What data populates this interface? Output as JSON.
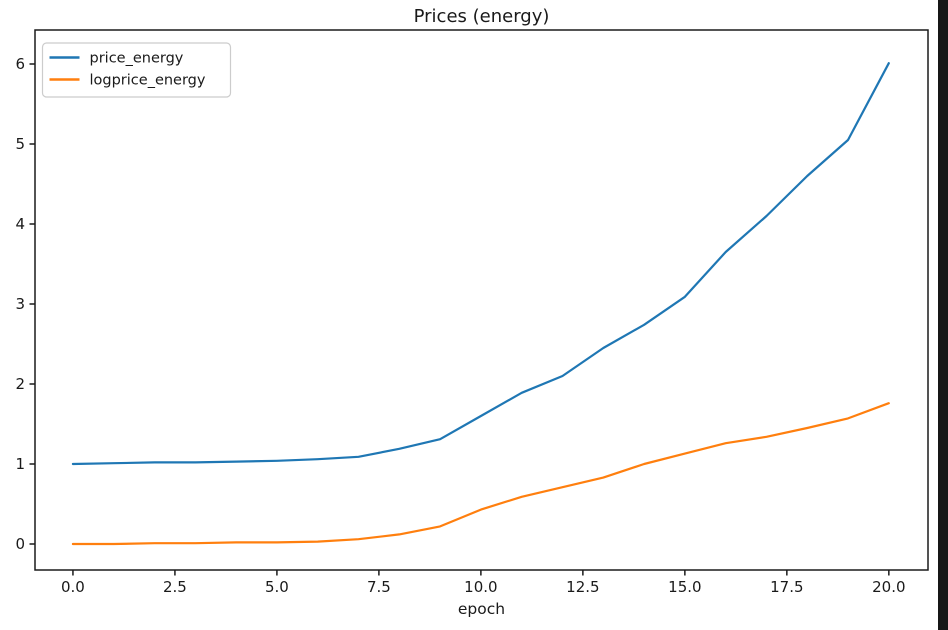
{
  "figure": {
    "background": "#ffffff",
    "edge_strip_color": "#171717",
    "frame_color": "#1a1a1a",
    "text_color": "#1a1a1a"
  },
  "chart_data": {
    "type": "line",
    "title": "Prices (energy)",
    "xlabel": "epoch",
    "ylabel": "",
    "grid": false,
    "x": [
      0,
      1,
      2,
      3,
      4,
      5,
      6,
      7,
      8,
      9,
      10,
      11,
      12,
      13,
      14,
      15,
      16,
      17,
      18,
      19,
      20
    ],
    "series": [
      {
        "name": "price_energy",
        "color": "#1f77b4",
        "values": [
          1.0,
          1.01,
          1.02,
          1.02,
          1.03,
          1.04,
          1.06,
          1.09,
          1.19,
          1.31,
          1.6,
          1.89,
          2.1,
          2.45,
          2.74,
          3.09,
          3.65,
          4.1,
          4.6,
          5.05,
          6.01
        ]
      },
      {
        "name": "logprice_energy",
        "color": "#ff7f0e",
        "values": [
          0.0,
          0.0,
          0.01,
          0.01,
          0.02,
          0.02,
          0.03,
          0.06,
          0.12,
          0.22,
          0.43,
          0.59,
          0.71,
          0.83,
          1.0,
          1.13,
          1.26,
          1.34,
          1.45,
          1.57,
          1.76
        ]
      }
    ],
    "x_ticks": [
      0,
      2.5,
      5,
      7.5,
      10,
      12.5,
      15,
      17.5,
      20
    ],
    "x_tick_labels": [
      "0.0",
      "2.5",
      "5.0",
      "7.5",
      "10.0",
      "12.5",
      "15.0",
      "17.5",
      "20.0"
    ],
    "y_ticks": [
      0,
      1,
      2,
      3,
      4,
      5,
      6
    ],
    "y_tick_labels": [
      "0",
      "1",
      "2",
      "3",
      "4",
      "5",
      "6"
    ],
    "xlim": [
      -0.93,
      20.96
    ],
    "ylim": [
      -0.325,
      6.425
    ],
    "legend": {
      "position": "upper-left",
      "entries": [
        "price_energy",
        "logprice_energy"
      ]
    }
  }
}
